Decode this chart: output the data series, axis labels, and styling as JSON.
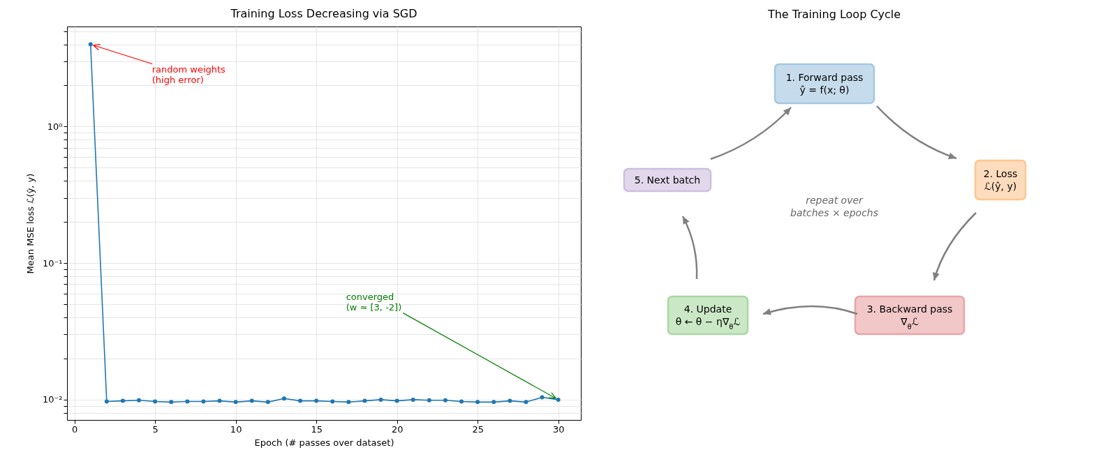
{
  "chart_data": [
    {
      "type": "line",
      "title": "Training Loss Decreasing via SGD",
      "xlabel": "Epoch (# passes over dataset)",
      "ylabel": "Mean MSE loss  ℒ(ŷ, y)",
      "x": [
        1,
        2,
        3,
        4,
        5,
        6,
        7,
        8,
        9,
        10,
        11,
        12,
        13,
        14,
        15,
        16,
        17,
        18,
        19,
        20,
        21,
        22,
        23,
        24,
        25,
        26,
        27,
        28,
        29,
        30
      ],
      "series": [
        {
          "color": "#1f77b4",
          "values": [
            4.0,
            0.0097,
            0.0098,
            0.0099,
            0.0097,
            0.0096,
            0.0097,
            0.0097,
            0.0098,
            0.0096,
            0.0098,
            0.0096,
            0.0102,
            0.0098,
            0.0098,
            0.0097,
            0.0096,
            0.0098,
            0.01,
            0.0098,
            0.01,
            0.0099,
            0.0099,
            0.0097,
            0.0096,
            0.0096,
            0.0098,
            0.0096,
            0.0104,
            0.01
          ]
        }
      ],
      "xlim": [
        -0.46,
        31.4
      ],
      "xticks": [
        0,
        5,
        10,
        15,
        20,
        25,
        30
      ],
      "ylim": [
        0.0071,
        5.4
      ],
      "log": "y",
      "yticks": [
        {
          "value": 0.008,
          "label": null
        },
        {
          "value": 0.009,
          "label": null
        },
        {
          "value": 0.01,
          "label": "10⁻²"
        },
        {
          "value": 0.02,
          "label": null
        },
        {
          "value": 0.03,
          "label": null
        },
        {
          "value": 0.04,
          "label": null
        },
        {
          "value": 0.05,
          "label": null
        },
        {
          "value": 0.06,
          "label": null
        },
        {
          "value": 0.07,
          "label": null
        },
        {
          "value": 0.08,
          "label": null
        },
        {
          "value": 0.09,
          "label": null
        },
        {
          "value": 0.1,
          "label": "10⁻¹"
        },
        {
          "value": 0.2,
          "label": null
        },
        {
          "value": 0.3,
          "label": null
        },
        {
          "value": 0.4,
          "label": null
        },
        {
          "value": 0.5,
          "label": null
        },
        {
          "value": 0.6,
          "label": null
        },
        {
          "value": 0.7,
          "label": null
        },
        {
          "value": 0.8,
          "label": null
        },
        {
          "value": 0.9,
          "label": null
        },
        {
          "value": 1,
          "label": "10⁰"
        },
        {
          "value": 2,
          "label": null
        },
        {
          "value": 3,
          "label": null
        },
        {
          "value": 4,
          "label": null
        },
        {
          "value": 5,
          "label": null
        }
      ],
      "grid": true,
      "marker": "circle",
      "line_style": "solid",
      "annotations": [
        "random weights\n(high error)",
        "converged\n(w ≈ [3, -2])"
      ]
    },
    {
      "type": "other",
      "title": "The Training Loop Cycle",
      "annotations": [
        "1. Forward pass\nŷ = f(x; θ)",
        "2. Loss\nℒ(ŷ, y)",
        "3. Backward pass\n∇$_{θ}$ℒ",
        "4. Update\nθ ← θ − η∇$_{θ}$ℒ",
        "5. Next batch",
        "repeat over\nbatches × epochs"
      ]
    }
  ]
}
